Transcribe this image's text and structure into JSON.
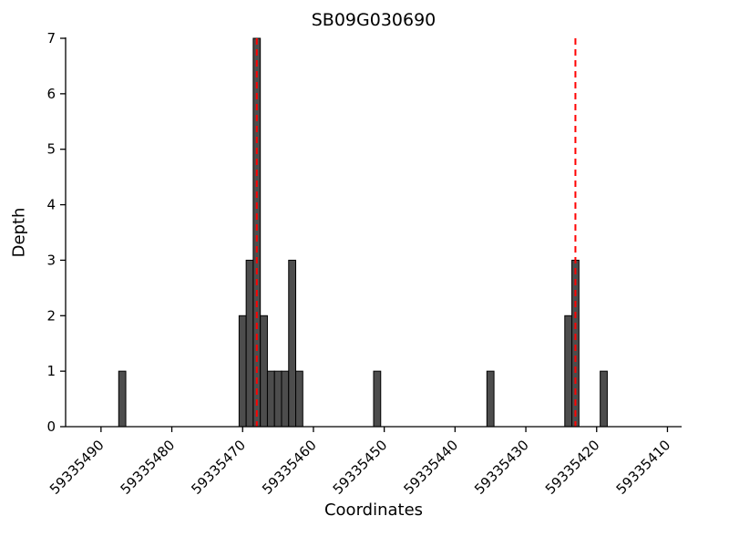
{
  "chart_data": {
    "type": "bar",
    "title": "SB09G030690",
    "xlabel": "Coordinates",
    "ylabel": "Depth",
    "x_axis_reversed": true,
    "xlim": [
      59335495,
      59335408
    ],
    "ylim": [
      0,
      7
    ],
    "x_ticks": [
      59335490,
      59335480,
      59335470,
      59335460,
      59335450,
      59335440,
      59335430,
      59335420,
      59335410
    ],
    "y_ticks": [
      0,
      1,
      2,
      3,
      4,
      5,
      6,
      7
    ],
    "bar_width": 1,
    "grid": false,
    "legend": "none",
    "bars": [
      {
        "coordinate": 59335487,
        "depth": 1
      },
      {
        "coordinate": 59335470,
        "depth": 2
      },
      {
        "coordinate": 59335469,
        "depth": 3
      },
      {
        "coordinate": 59335468,
        "depth": 7
      },
      {
        "coordinate": 59335467,
        "depth": 2
      },
      {
        "coordinate": 59335466,
        "depth": 1
      },
      {
        "coordinate": 59335465,
        "depth": 1
      },
      {
        "coordinate": 59335464,
        "depth": 1
      },
      {
        "coordinate": 59335463,
        "depth": 3
      },
      {
        "coordinate": 59335462,
        "depth": 1
      },
      {
        "coordinate": 59335451,
        "depth": 1
      },
      {
        "coordinate": 59335435,
        "depth": 1
      },
      {
        "coordinate": 59335424,
        "depth": 2
      },
      {
        "coordinate": 59335423,
        "depth": 3
      },
      {
        "coordinate": 59335419,
        "depth": 1
      }
    ],
    "vlines": [
      {
        "coordinate": 59335468,
        "style": "dashed",
        "color": "#ff0000"
      },
      {
        "coordinate": 59335423,
        "style": "dashed",
        "color": "#ff0000"
      }
    ],
    "colors": {
      "bar_fill": "#4d4d4d",
      "bar_edge": "#000000",
      "axis": "#000000",
      "vline": "#ff0000",
      "background": "#ffffff"
    }
  }
}
